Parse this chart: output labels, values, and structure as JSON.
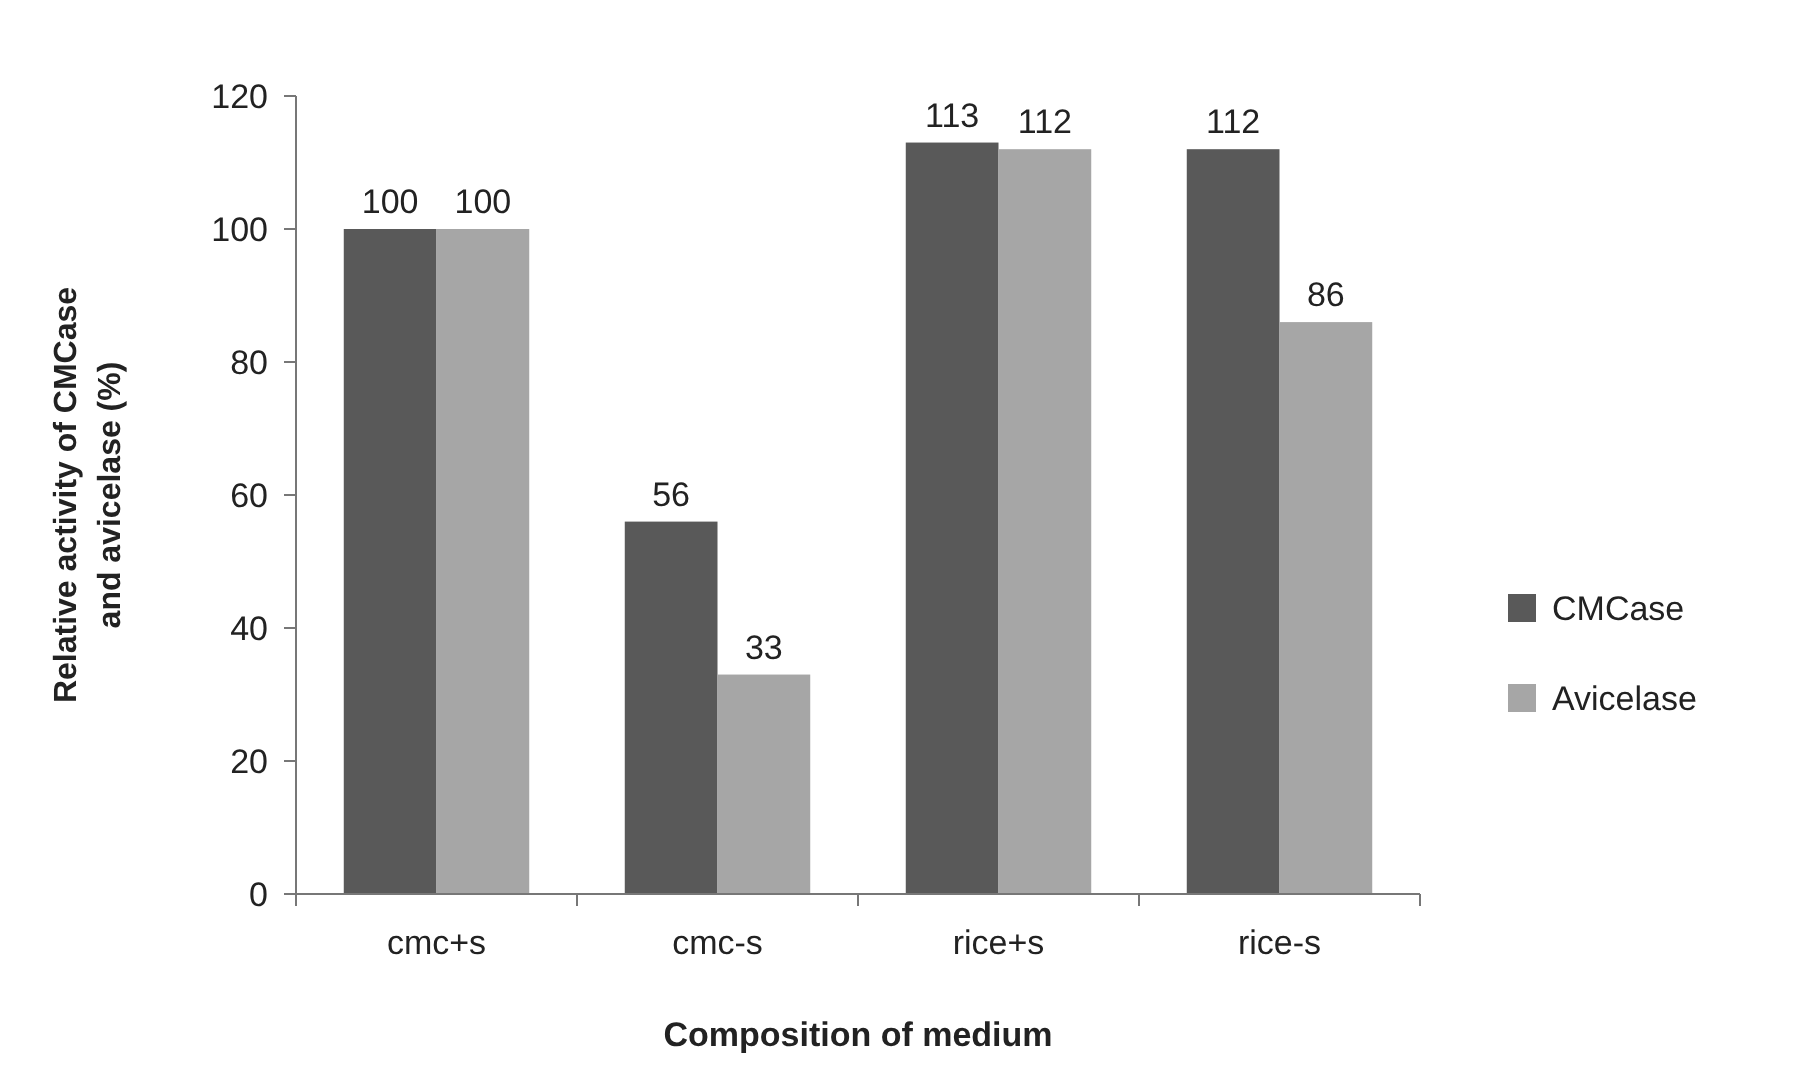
{
  "chart_data": {
    "type": "bar",
    "xlabel": "Composition of medium",
    "ylabel": "Relative activity of CMCase and avicelase  (%)",
    "categories": [
      "cmc+s",
      "cmc-s",
      "rice+s",
      "rice-s"
    ],
    "series": [
      {
        "name": "CMCase",
        "color": "#595959",
        "values": [
          100,
          56,
          113,
          112
        ]
      },
      {
        "name": "Avicelase",
        "color": "#a6a6a6",
        "values": [
          100,
          33,
          112,
          86
        ]
      }
    ],
    "ylim": [
      0,
      120
    ],
    "yticks": [
      0,
      20,
      40,
      60,
      80,
      100,
      120
    ],
    "data_labels": true,
    "legend": "right",
    "grid": false
  }
}
